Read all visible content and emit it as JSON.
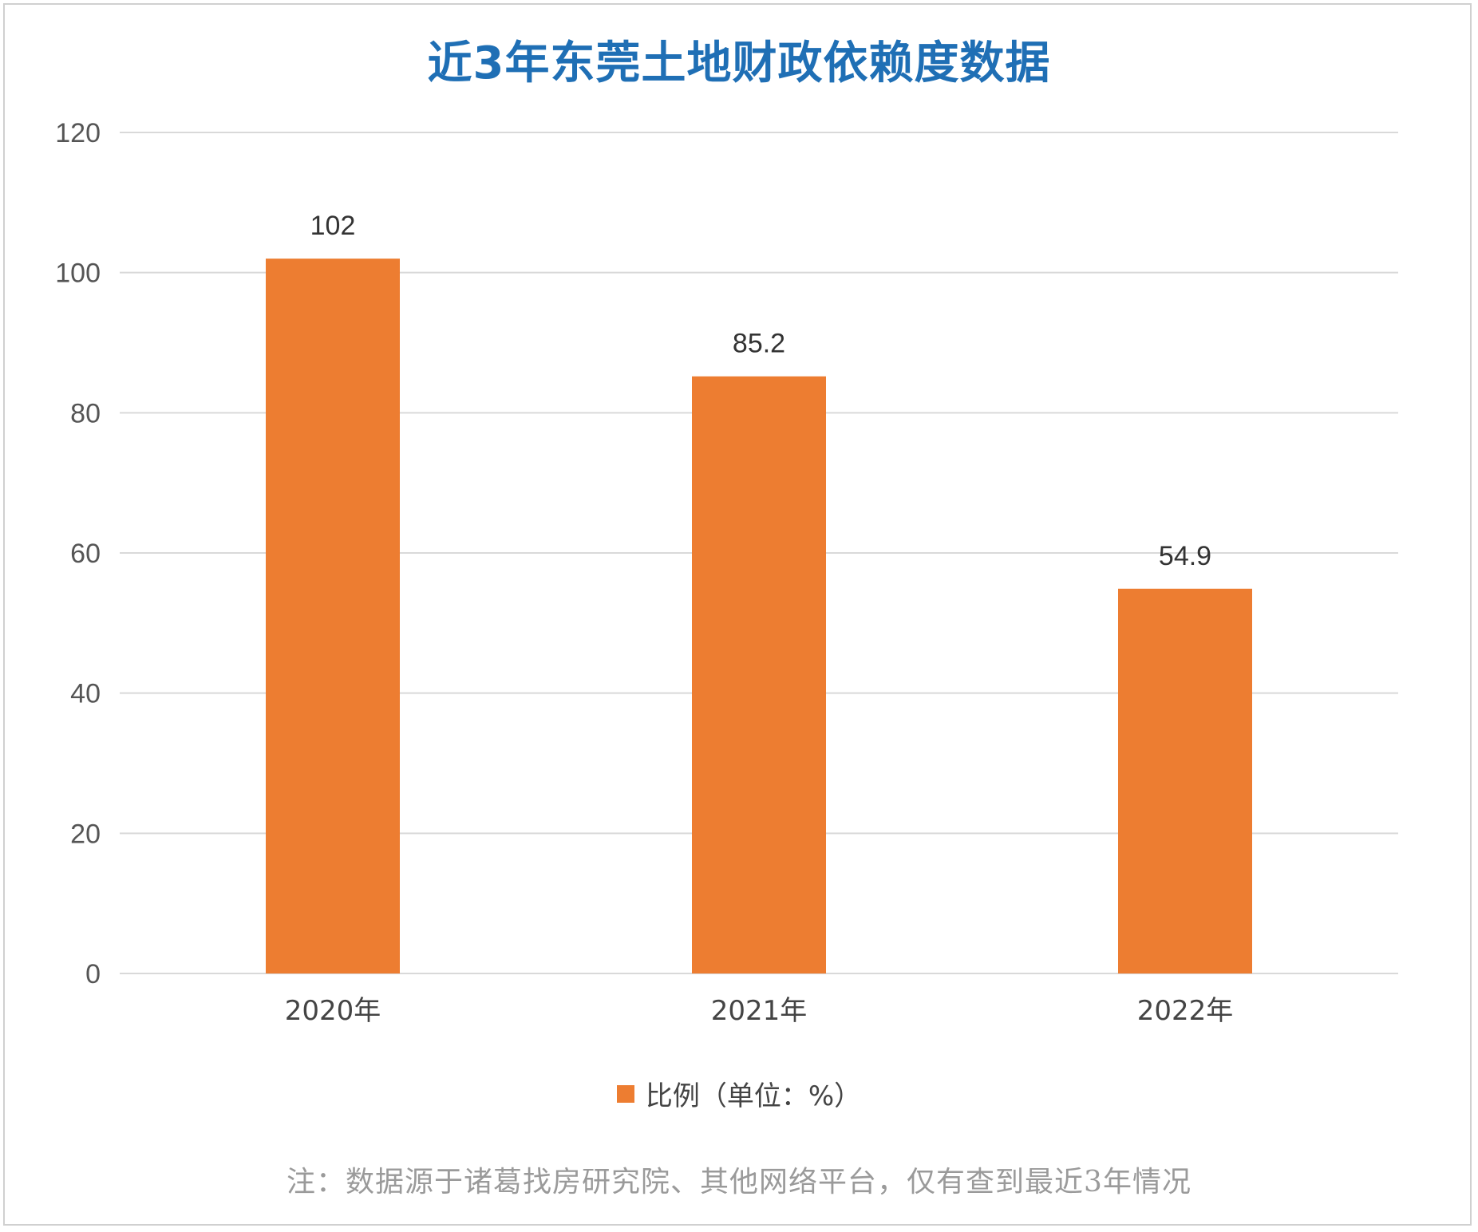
{
  "chart_data": {
    "type": "bar",
    "title": "近3年东莞土地财政依赖度数据",
    "categories": [
      "2020年",
      "2021年",
      "2022年"
    ],
    "series": [
      {
        "name": "比例（单位：%）",
        "values": [
          102,
          85.2,
          54.9
        ],
        "color": "#ed7d31"
      }
    ],
    "data_labels": [
      "102",
      "85.2",
      "54.9"
    ],
    "ylim": [
      0,
      120
    ],
    "yticks": [
      0,
      20,
      40,
      60,
      80,
      100,
      120
    ],
    "grid": true,
    "legend_position": "bottom"
  },
  "title_color": "#1f6fb5",
  "note": "注：数据源于诸葛找房研究院、其他网络平台，仅有查到最近3年情况"
}
